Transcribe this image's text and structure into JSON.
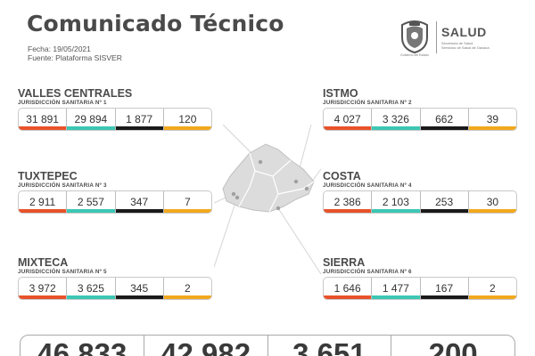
{
  "header": {
    "title": "Comunicado Técnico",
    "fecha": "Fecha: 19/05/2021",
    "fuente": "Fuente: Plataforma SISVER"
  },
  "logo": {
    "name": "SALUD",
    "line1": "Secretaría de Salud",
    "line2": "Servicios de Salud de Oaxaca",
    "seal_caption": "Gobierno del Estado"
  },
  "colors": {
    "positivos": "#e8522a",
    "recuperados": "#3cc7b4",
    "defunciones": "#1a1a1a",
    "activos": "#f2a81d"
  },
  "regions": [
    {
      "name": "VALLES CENTRALES",
      "jurisdiccion": "JURISDICCIÓN SANITARIA Nº 1",
      "values": [
        "31 891",
        "29 894",
        "1 877",
        "120"
      ]
    },
    {
      "name": "ISTMO",
      "jurisdiccion": "JURISDICCIÓN SANITARIA Nº 2",
      "values": [
        "4 027",
        "3 326",
        "662",
        "39"
      ]
    },
    {
      "name": "TUXTEPEC",
      "jurisdiccion": "JURISDICCIÓN SANITARIA Nº 3",
      "values": [
        "2 911",
        "2 557",
        "347",
        "7"
      ]
    },
    {
      "name": "COSTA",
      "jurisdiccion": "JURISDICCIÓN SANITARIA Nº 4",
      "values": [
        "2 386",
        "2 103",
        "253",
        "30"
      ]
    },
    {
      "name": "MIXTECA",
      "jurisdiccion": "JURISDICCIÓN SANITARIA Nº 5",
      "values": [
        "3 972",
        "3 625",
        "345",
        "2"
      ]
    },
    {
      "name": "SIERRA",
      "jurisdiccion": "JURISDICCIÓN SANITARIA Nº 6",
      "values": [
        "1 646",
        "1 477",
        "167",
        "2"
      ]
    }
  ],
  "totals": [
    "46 833",
    "42 982",
    "3 651",
    "200"
  ]
}
